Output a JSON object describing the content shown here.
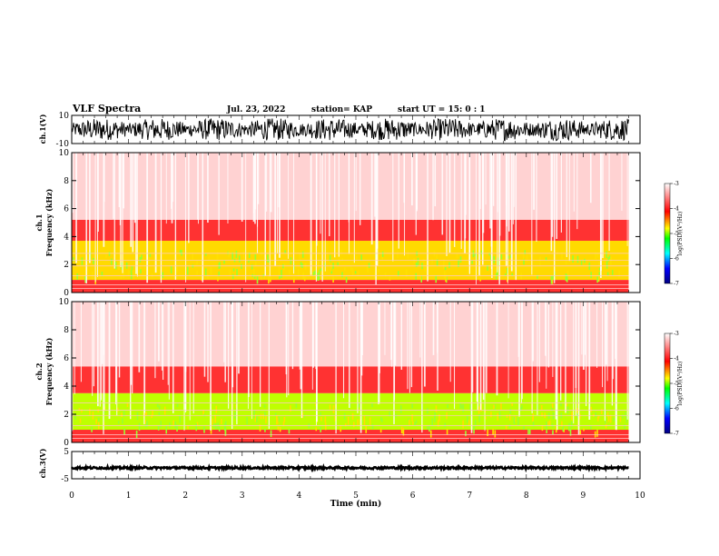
{
  "header": {
    "title": "VLF Spectra",
    "date": "Jul. 23, 2022",
    "station": "station= KAP",
    "start": "start UT =   15: 0  : 1"
  },
  "chart_data": [
    {
      "type": "line",
      "name": "ch1-waveform",
      "ylabel": "ch.1(V)",
      "x_range": [
        0,
        10
      ],
      "ylim": [
        -10,
        10
      ],
      "yticks": [
        "10",
        "-10"
      ],
      "amplitude_approx": 8,
      "data_end_min": 9.8
    },
    {
      "type": "heatmap",
      "name": "ch1-spectrogram",
      "ylabel": "ch.1\nFrequency (kHz)",
      "x_range": [
        0,
        10
      ],
      "ylim": [
        0,
        10
      ],
      "yticks": [
        "0",
        "2",
        "4",
        "6",
        "8",
        "10"
      ],
      "data_end_min": 9.8,
      "bands_kHz": [
        {
          "from": 0.9,
          "to": 3.7,
          "level": -4.7
        },
        {
          "from": 3.7,
          "to": 5.2,
          "level": -3.9
        },
        {
          "from": 5.2,
          "to": 10,
          "level": -3.2
        }
      ],
      "colorbar": {
        "label": "log(PSD)(V²/Hz)",
        "ticks": [
          "-3",
          "-4",
          "-5",
          "-6",
          "-7"
        ],
        "range": [
          -7,
          -3
        ]
      }
    },
    {
      "type": "heatmap",
      "name": "ch2-spectrogram",
      "ylabel": "ch.2\nFrequency (kHz)",
      "x_range": [
        0,
        10
      ],
      "ylim": [
        0,
        10
      ],
      "yticks": [
        "0",
        "2",
        "4",
        "6",
        "8",
        "10"
      ],
      "data_end_min": 9.8,
      "bands_kHz": [
        {
          "from": 0.6,
          "to": 3.5,
          "level": -4.9
        },
        {
          "from": 3.5,
          "to": 5.4,
          "level": -3.9
        },
        {
          "from": 5.4,
          "to": 10,
          "level": -3.2
        }
      ],
      "colorbar": {
        "label": "log(PSD)(V²/Hz)",
        "ticks": [
          "-3",
          "-4",
          "-5",
          "-6",
          "-7"
        ],
        "range": [
          -7,
          -3
        ]
      }
    },
    {
      "type": "line",
      "name": "ch3-waveform",
      "ylabel": "ch.3(V)",
      "x_range": [
        0,
        10
      ],
      "ylim": [
        -5,
        5
      ],
      "yticks": [
        "5",
        "-5"
      ],
      "level": -1,
      "amplitude_approx": 0.4,
      "data_end_min": 9.8
    }
  ],
  "xaxis": {
    "label": "Time (min)",
    "ticks": [
      "0",
      "1",
      "2",
      "3",
      "4",
      "5",
      "6",
      "7",
      "8",
      "9",
      "10"
    ]
  },
  "colors": {
    "trace": "#000000",
    "colormap": [
      "#000080",
      "#0000ff",
      "#00ffff",
      "#00ff00",
      "#ffff00",
      "#ff0000",
      "#ffffff"
    ]
  }
}
